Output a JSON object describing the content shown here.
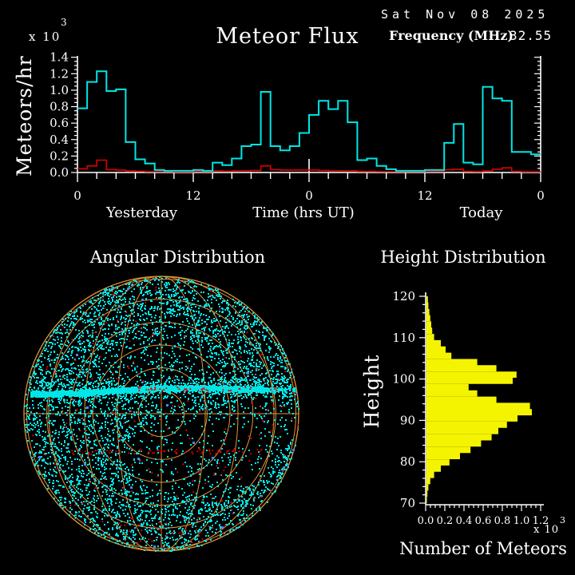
{
  "header": {
    "title": "Meteor Flux",
    "date": "Sat Nov 08 2025",
    "frequency_label": "Frequency (MHz)",
    "frequency_value": "32.55",
    "scale_base": "x 10",
    "scale_exponent": "3"
  },
  "flux_chart": {
    "ylabel": "Meteors/hr",
    "xlabel": "Time (hrs UT)",
    "left_day_label": "Yesterday",
    "right_day_label": "Today",
    "scale_base": "x 10",
    "scale_exponent": "3",
    "axis_color": "#ffffff",
    "flux_color": "#00e6e6",
    "secondary_color": "#dd0000"
  },
  "angular": {
    "title": "Angular Distribution",
    "grid_color": "#e0953a",
    "dot_color": "#00e6e6",
    "marker_color": "#e00000",
    "rare_marker_color": "#4f86ff"
  },
  "height_chart": {
    "title": "Height Distribution",
    "ylabel": "Height",
    "xlabel": "Number of Meteors",
    "scale_base": "x 10",
    "scale_exponent": "3",
    "bar_color": "#f4f400",
    "axis_color": "#ffffff"
  },
  "chart_data": [
    {
      "type": "line",
      "title": "Meteor Flux",
      "ylabel": "Meteors/hr (x10^3)",
      "xlabel": "Time (hrs UT)",
      "ylim": [
        0,
        1.4
      ],
      "y_tick_labels": [
        "0.0",
        "0.2",
        "0.4",
        "0.6",
        "0.8",
        "1.0",
        "1.2",
        "1.4"
      ],
      "x_hours_range": [
        0,
        48
      ],
      "bin_hours": 1,
      "x_tick_positions_hr": [
        0,
        12,
        24,
        36,
        48
      ],
      "x_tick_labels": [
        "0",
        "12",
        "0",
        "12",
        "0"
      ],
      "day_labels": [
        "Yesterday",
        "Today"
      ],
      "series": [
        {
          "name": "meteor flux (cyan)",
          "values": [
            0.78,
            1.1,
            1.23,
            0.99,
            1.01,
            0.37,
            0.16,
            0.11,
            0.03,
            0.02,
            0.02,
            0.02,
            0.03,
            0.02,
            0.12,
            0.09,
            0.17,
            0.32,
            0.34,
            0.98,
            0.32,
            0.27,
            0.32,
            0.48,
            0.7,
            0.87,
            0.77,
            0.87,
            0.61,
            0.15,
            0.17,
            0.08,
            0.04,
            0.02,
            0.02,
            0.02,
            0.03,
            0.03,
            0.36,
            0.59,
            0.12,
            0.1,
            1.04,
            0.9,
            0.87,
            0.25,
            0.25,
            0.22
          ]
        },
        {
          "name": "secondary count (red)",
          "values": [
            0.045,
            0.08,
            0.15,
            0.035,
            0.03,
            0.02,
            0.015,
            0.01,
            0.01,
            0.01,
            0.008,
            0.008,
            0.012,
            0.01,
            0.02,
            0.015,
            0.02,
            0.02,
            0.025,
            0.08,
            0.035,
            0.03,
            0.03,
            0.03,
            0.03,
            0.025,
            0.02,
            0.02,
            0.02,
            0.012,
            0.012,
            0.01,
            0.01,
            0.01,
            0.01,
            0.01,
            0.012,
            0.012,
            0.033,
            0.04,
            0.012,
            0.01,
            0.018,
            0.04,
            0.056,
            0.012,
            0.008,
            0.008
          ]
        }
      ]
    },
    {
      "type": "scatter",
      "title": "Angular Distribution",
      "description": "All-sky polar map of meteor radiant echoes: dense cyan speckle over the full disk, a solid cyan horizontal band just above center, a thin row of red markers below center, red triangular markers scattered throughout, and a few blue markers; orange grid of 6 concentric circles (double outer rim), crosshair diameters and meridian arcs.",
      "n_cyan_points_approx": 4500,
      "n_red_markers_approx": 330,
      "n_blue_markers_approx": 16,
      "band_note": "solid cyan band across disk slightly above horizontal diameter",
      "red_row_note": "row of red markers about 50 px below center, plus red cluster near bottom rim"
    },
    {
      "type": "bar",
      "title": "Height Distribution",
      "orientation": "horizontal",
      "ylabel": "Height",
      "xlabel": "Number of Meteors (x10^3)",
      "ylim": [
        70,
        120
      ],
      "xlim": [
        0,
        1.2
      ],
      "y_tick_labels": [
        "70",
        "80",
        "90",
        "100",
        "110",
        "120"
      ],
      "x_tick_labels": [
        "0.0",
        "0.2",
        "0.4",
        "0.6",
        "0.8",
        "1.0",
        "1.2"
      ],
      "height_km_start": 70,
      "bin_km": 1.51515,
      "values": [
        0.005,
        0.01,
        0.02,
        0.04,
        0.08,
        0.15,
        0.24,
        0.35,
        0.46,
        0.57,
        0.68,
        0.75,
        0.84,
        0.95,
        1.1,
        1.08,
        0.73,
        0.53,
        0.44,
        0.9,
        0.94,
        0.73,
        0.53,
        0.26,
        0.2,
        0.15,
        0.08,
        0.06,
        0.05,
        0.04,
        0.03,
        0.02,
        0.015
      ]
    }
  ]
}
